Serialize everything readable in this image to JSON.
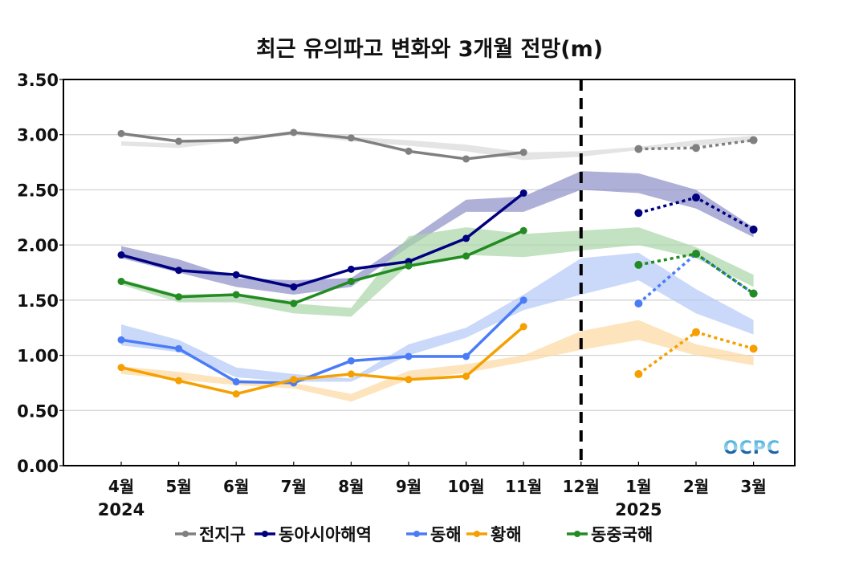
{
  "chart_data": {
    "type": "line",
    "title": "최근 유의파고 변화와 3개월 전망(m)",
    "xlabel": "",
    "ylabel": "",
    "ylim": [
      0,
      3.5
    ],
    "yticks": [
      "0.00",
      "0.50",
      "1.00",
      "1.50",
      "2.00",
      "2.50",
      "3.00",
      "3.50"
    ],
    "ytick_values": [
      0,
      0.5,
      1.0,
      1.5,
      2.0,
      2.5,
      3.0,
      3.5
    ],
    "grid": "horizontal",
    "categories": [
      "4월",
      "5월",
      "6월",
      "7월",
      "8월",
      "9월",
      "10월",
      "11월",
      "12월",
      "1월",
      "2월",
      "3월"
    ],
    "year_labels": [
      {
        "label": "2024",
        "category_index": 0
      },
      {
        "label": "2025",
        "category_index": 9
      }
    ],
    "divider": {
      "style": "dashed",
      "category_index": 8
    },
    "legend_position": "bottom",
    "watermark": "OCPC",
    "series": [
      {
        "name": "전지구",
        "color": "#808080",
        "band_color": "#d9d9d9",
        "observed": [
          3.01,
          2.94,
          2.95,
          3.02,
          2.97,
          2.85,
          2.78,
          2.84,
          null,
          null,
          null,
          null
        ],
        "forecast": [
          null,
          null,
          null,
          null,
          null,
          null,
          null,
          null,
          null,
          2.87,
          2.88,
          2.95
        ],
        "band_lower": [
          2.9,
          2.88,
          2.94,
          3.0,
          2.94,
          2.9,
          2.85,
          2.77,
          2.8,
          2.86,
          2.9,
          2.94
        ],
        "band_upper": [
          2.94,
          2.92,
          2.98,
          3.03,
          2.98,
          2.95,
          2.91,
          2.84,
          2.85,
          2.89,
          2.95,
          2.99
        ]
      },
      {
        "name": "동아시아해역",
        "color": "#000080",
        "band_color": "#8d8fc8",
        "observed": [
          1.91,
          1.77,
          1.73,
          1.62,
          1.78,
          1.85,
          2.06,
          2.47,
          null,
          null,
          null,
          null
        ],
        "forecast": [
          null,
          null,
          null,
          null,
          null,
          null,
          null,
          null,
          null,
          2.29,
          2.43,
          2.14
        ],
        "band_lower": [
          1.88,
          1.75,
          1.62,
          1.55,
          1.62,
          1.98,
          2.3,
          2.3,
          2.5,
          2.47,
          2.33,
          2.07
        ],
        "band_upper": [
          1.99,
          1.87,
          1.7,
          1.68,
          1.7,
          2.05,
          2.41,
          2.44,
          2.67,
          2.65,
          2.5,
          2.16
        ]
      },
      {
        "name": "동해",
        "color": "#4a7cf7",
        "band_color": "#b3c7f7",
        "observed": [
          1.14,
          1.06,
          0.76,
          0.75,
          0.95,
          0.99,
          0.99,
          1.5,
          null,
          null,
          null,
          null
        ],
        "forecast": [
          null,
          null,
          null,
          null,
          null,
          null,
          null,
          null,
          null,
          1.47,
          1.92,
          1.56
        ],
        "band_lower": [
          1.09,
          1.03,
          0.8,
          0.76,
          0.76,
          1.0,
          1.16,
          1.41,
          1.55,
          1.68,
          1.38,
          1.19
        ],
        "band_upper": [
          1.28,
          1.14,
          0.89,
          0.83,
          0.79,
          1.1,
          1.25,
          1.55,
          1.88,
          1.93,
          1.6,
          1.32
        ]
      },
      {
        "name": "황해",
        "color": "#f5a000",
        "band_color": "#fcd9a0",
        "observed": [
          0.89,
          0.77,
          0.65,
          0.78,
          0.83,
          0.78,
          0.81,
          1.26,
          null,
          null,
          null,
          null
        ],
        "forecast": [
          null,
          null,
          null,
          null,
          null,
          null,
          null,
          null,
          null,
          0.83,
          1.21,
          1.06
        ],
        "band_lower": [
          0.83,
          0.78,
          0.73,
          0.7,
          0.58,
          0.78,
          0.84,
          0.94,
          1.05,
          1.14,
          1.0,
          0.91
        ],
        "band_upper": [
          0.9,
          0.85,
          0.78,
          0.75,
          0.65,
          0.86,
          0.92,
          1.0,
          1.22,
          1.32,
          1.1,
          0.99
        ]
      },
      {
        "name": "동중국해",
        "color": "#228b22",
        "band_color": "#a8d5a8",
        "observed": [
          1.67,
          1.53,
          1.55,
          1.47,
          1.67,
          1.81,
          1.9,
          2.13,
          null,
          null,
          null,
          null
        ],
        "forecast": [
          null,
          null,
          null,
          null,
          null,
          null,
          null,
          null,
          null,
          1.82,
          1.92,
          1.56
        ],
        "band_lower": [
          1.64,
          1.48,
          1.48,
          1.38,
          1.35,
          1.82,
          1.91,
          1.89,
          1.95,
          2.0,
          1.88,
          1.62
        ],
        "band_upper": [
          1.69,
          1.55,
          1.56,
          1.47,
          1.43,
          2.08,
          2.16,
          2.1,
          2.13,
          2.16,
          1.98,
          1.73
        ]
      }
    ]
  }
}
